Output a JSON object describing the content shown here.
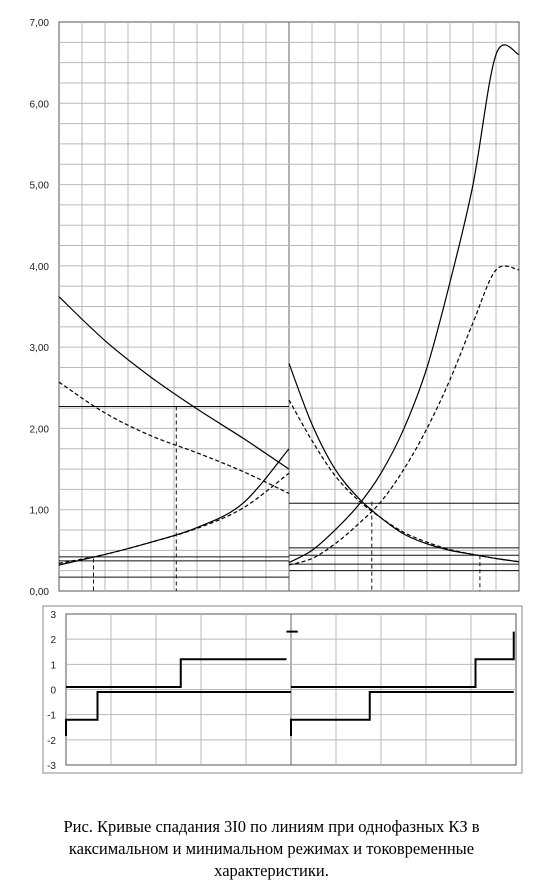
{
  "chart_data": [
    {
      "type": "line",
      "title": "",
      "xlabel": "",
      "ylabel": "",
      "ylim": [
        0,
        7
      ],
      "y_ticks": [
        "0,00",
        "1,00",
        "2,00",
        "3,00",
        "4,00",
        "5,00",
        "6,00",
        "7,00"
      ],
      "x_range": [
        0,
        2
      ],
      "grid": true,
      "legend": "none",
      "series": [
        {
          "style": "solid",
          "x": [
            0,
            0.2,
            0.4,
            0.6,
            0.8,
            1.0
          ],
          "values": [
            3.62,
            3.08,
            2.63,
            2.24,
            1.88,
            1.5
          ]
        },
        {
          "style": "dashed",
          "x": [
            0,
            0.2,
            0.4,
            0.6,
            0.8,
            1.0
          ],
          "values": [
            2.57,
            2.19,
            1.91,
            1.7,
            1.47,
            1.2
          ]
        },
        {
          "style": "solid",
          "x": [
            0,
            0.2,
            0.4,
            0.6,
            0.8,
            1.0
          ],
          "values": [
            0.32,
            0.45,
            0.6,
            0.78,
            1.08,
            1.75
          ]
        },
        {
          "style": "dashed",
          "x": [
            0,
            0.2,
            0.4,
            0.6,
            0.8,
            1.0
          ],
          "values": [
            0.34,
            0.45,
            0.6,
            0.77,
            1.02,
            1.45
          ]
        },
        {
          "style": "solid",
          "x": [
            1.0,
            1.1,
            1.2,
            1.3,
            1.4,
            1.5,
            1.6,
            1.7,
            1.8,
            1.9,
            2.0
          ],
          "values": [
            2.8,
            2.05,
            1.5,
            1.15,
            0.9,
            0.7,
            0.58,
            0.5,
            0.45,
            0.4,
            0.36
          ]
        },
        {
          "style": "dashed",
          "x": [
            1.0,
            1.1,
            1.2,
            1.3,
            1.4,
            1.5,
            1.6,
            1.7,
            1.8,
            1.9,
            2.0
          ],
          "values": [
            2.35,
            1.85,
            1.42,
            1.12,
            0.9,
            0.72,
            0.6,
            0.51,
            0.45,
            0.4,
            0.36
          ]
        },
        {
          "style": "solid",
          "x": [
            1.0,
            1.1,
            1.2,
            1.3,
            1.4,
            1.5,
            1.6,
            1.7,
            1.8,
            1.9,
            2.0
          ],
          "values": [
            0.35,
            0.5,
            0.75,
            1.05,
            1.45,
            2.0,
            2.75,
            3.8,
            5.0,
            6.6,
            6.6
          ]
        },
        {
          "style": "dashed",
          "x": [
            1.0,
            1.1,
            1.2,
            1.3,
            1.4,
            1.5,
            1.6,
            1.7,
            1.8,
            1.9,
            2.0
          ],
          "values": [
            0.32,
            0.4,
            0.58,
            0.82,
            1.1,
            1.5,
            2.0,
            2.6,
            3.3,
            3.95,
            3.95
          ]
        }
      ],
      "horizontal_lines": [
        {
          "y": 2.27,
          "x_from": 0,
          "x_to": 1.0
        },
        {
          "y": 0.42,
          "x_from": 0,
          "x_to": 1.0
        },
        {
          "y": 0.37,
          "x_from": 0,
          "x_to": 1.0
        },
        {
          "y": 0.17,
          "x_from": 0,
          "x_to": 1.0
        },
        {
          "y": 1.08,
          "x_from": 1.0,
          "x_to": 2.0
        },
        {
          "y": 0.53,
          "x_from": 1.0,
          "x_to": 2.0
        },
        {
          "y": 0.44,
          "x_from": 1.0,
          "x_to": 2.0
        },
        {
          "y": 0.33,
          "x_from": 1.0,
          "x_to": 2.0
        },
        {
          "y": 0.25,
          "x_from": 1.0,
          "x_to": 2.0
        }
      ],
      "vertical_markers": [
        {
          "x": 0.15,
          "y_to": 0.4
        },
        {
          "x": 0.51,
          "y_to": 2.27
        },
        {
          "x": 1.36,
          "y_to": 1.1
        },
        {
          "x": 1.83,
          "y_to": 0.44
        }
      ]
    },
    {
      "type": "line",
      "title": "",
      "ylim": [
        -3,
        3
      ],
      "y_ticks": [
        "3",
        "2",
        "1",
        "0",
        "-1",
        "-2",
        "-3"
      ],
      "x_range": [
        0,
        2
      ],
      "grid": true,
      "legend": "none",
      "step_series": [
        {
          "x": [
            0,
            0.14,
            0.14,
            0.51,
            0.51,
            0.98
          ],
          "values": [
            0.1,
            0.1,
            0.1,
            0.1,
            1.2,
            1.2
          ]
        },
        {
          "x": [
            0.98,
            1.03
          ],
          "values": [
            2.3,
            2.3
          ]
        },
        {
          "x": [
            0,
            0,
            0.14,
            0.14,
            1.0
          ],
          "values": [
            -1.85,
            -1.2,
            -1.2,
            -0.1,
            -0.1
          ]
        },
        {
          "x": [
            1.0,
            1.82,
            1.82,
            1.99,
            1.99
          ],
          "values": [
            0.1,
            0.1,
            1.2,
            1.2,
            2.3
          ]
        },
        {
          "x": [
            1.0,
            1.0,
            1.35,
            1.35,
            1.99
          ],
          "values": [
            -1.85,
            -1.2,
            -1.2,
            -0.1,
            -0.1
          ]
        }
      ]
    }
  ],
  "caption": {
    "line1": "Рис. Кривые спадания 3I0 по линиям при однофазных КЗ в",
    "line2": "каксимальном и минимальном режимах и токовременные",
    "line3": "характеристики."
  }
}
